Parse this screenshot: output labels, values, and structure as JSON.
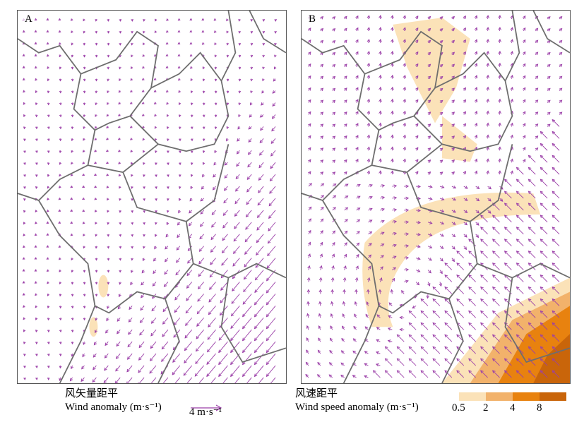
{
  "panels": [
    {
      "label": "A",
      "type": "wind-vector-map"
    },
    {
      "label": "B",
      "type": "wind-speed-anomaly-map"
    }
  ],
  "legend_left": {
    "title_cn": "风矢量距平",
    "title_en": "Wind anomaly (m·s⁻¹)",
    "reference_value": "4 m·s⁻¹"
  },
  "legend_right": {
    "title_cn": "风速距平",
    "title_en": "Wind speed anomaly (m·s⁻¹)",
    "levels": [
      "0.5",
      "2",
      "4",
      "8"
    ],
    "colors": [
      "#fbe2b8",
      "#f2b26b",
      "#e8820f",
      "#c9650a"
    ]
  },
  "colors": {
    "vector": "#9b3fa8",
    "boundary": "#6e6e6e",
    "frame": "#555555"
  }
}
